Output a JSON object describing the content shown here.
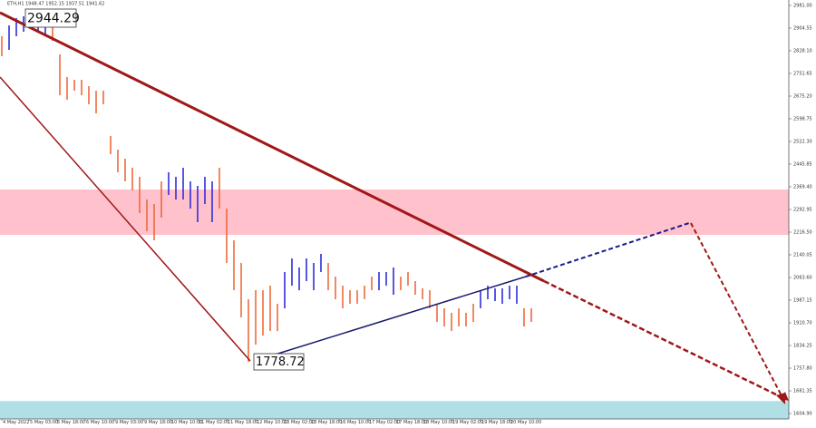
{
  "chart_data": {
    "type": "ohlc",
    "title": "ETH,H1",
    "subtitle": "1948.47 1952.15 1937.51 1941.62",
    "annotations": [
      "2944.29",
      "1778.72"
    ],
    "xlim": [
      0,
      434
    ],
    "ylim": [
      1586.6,
      2999.3
    ],
    "xticks": [
      {
        "value": 0,
        "label": "4 May 2022"
      },
      {
        "value": 15,
        "label": "5 May 03:00"
      },
      {
        "value": 30,
        "label": "5 May 18:00"
      },
      {
        "value": 46,
        "label": "6 May 10:00"
      },
      {
        "value": 62,
        "label": "9 May 03:00"
      },
      {
        "value": 78,
        "label": "9 May 18:00"
      },
      {
        "value": 93,
        "label": "10 May 10:00"
      },
      {
        "value": 108,
        "label": "11 May 02:00"
      },
      {
        "value": 124,
        "label": "11 May 18:00"
      },
      {
        "value": 140,
        "label": "12 May 10:00"
      },
      {
        "value": 155,
        "label": "13 May 02:00"
      },
      {
        "value": 170,
        "label": "13 May 18:00"
      },
      {
        "value": 186,
        "label": "16 May 10:00"
      },
      {
        "value": 202,
        "label": "17 May 02:00"
      },
      {
        "value": 217,
        "label": "17 May 18:00"
      },
      {
        "value": 232,
        "label": "18 May 10:00"
      },
      {
        "value": 248,
        "label": "19 May 02:00"
      },
      {
        "value": 264,
        "label": "19 May 18:00"
      },
      {
        "value": 280,
        "label": "20 May 10:00"
      }
    ],
    "yticks": [
      {
        "value": 2981,
        "label": "2981.00"
      },
      {
        "value": 2904.55,
        "label": "2904.55"
      },
      {
        "value": 2828.1,
        "label": "2828.10"
      },
      {
        "value": 2751.65,
        "label": "2751.65"
      },
      {
        "value": 2675.2,
        "label": "2675.20"
      },
      {
        "value": 2598.75,
        "label": "2598.75"
      },
      {
        "value": 2522.3,
        "label": "2522.30"
      },
      {
        "value": 2445.85,
        "label": "2445.85"
      },
      {
        "value": 2369.4,
        "label": "2369.40"
      },
      {
        "value": 2292.95,
        "label": "2292.95"
      },
      {
        "value": 2216.5,
        "label": "2216.50"
      },
      {
        "value": 2140.05,
        "label": "2140.05"
      },
      {
        "value": 2063.6,
        "label": "2063.60"
      },
      {
        "value": 1987.15,
        "label": "1987.15"
      },
      {
        "value": 1910.7,
        "label": "1910.70"
      },
      {
        "value": 1834.25,
        "label": "1834.25"
      },
      {
        "value": 1757.8,
        "label": "1757.80"
      },
      {
        "value": 1681.35,
        "label": "1681.35"
      },
      {
        "value": 1604.9,
        "label": "1604.90"
      }
    ],
    "zones": [
      {
        "from": 2207.3,
        "to": 2360.2,
        "color": "#ffc1cc"
      },
      {
        "from": 1586.6,
        "to": 1647,
        "color": "#b0e0e6"
      }
    ],
    "series": [
      {
        "color": "#ee6a3a",
        "x": [
          0,
          28,
          32,
          36,
          40,
          44,
          48,
          52,
          56,
          60,
          64,
          68,
          72,
          76,
          80,
          84,
          88,
          120,
          124,
          128,
          132,
          136,
          140,
          144,
          148,
          152,
          180,
          184,
          188,
          192,
          196,
          200,
          204,
          220,
          224,
          228,
          232,
          236,
          240,
          244,
          248,
          252,
          256,
          260,
          288,
          292
        ],
        "high": [
          2877.0,
          2907.6,
          2815.8,
          2739.4,
          2730.2,
          2730.2,
          2708.8,
          2693.5,
          2693.5,
          2540.6,
          2494.7,
          2464.2,
          2433.6,
          2403.0,
          2326.5,
          2311.2,
          2387.7,
          2433.6,
          2295.9,
          2188.9,
          2112.5,
          1990.2,
          2020.7,
          2020.7,
          2036.0,
          1974.9,
          2112.5,
          2066.6,
          2036.0,
          2020.7,
          2020.7,
          2036.0,
          2066.6,
          2066.6,
          2081.9,
          2051.3,
          2026.9,
          2020.7,
          1974.9,
          1959.6,
          1944.3,
          1959.6,
          1944.3,
          1974.9,
          1959.6,
          1959.6
        ],
        "low": [
          2809.7,
          2861.7,
          2678.2,
          2662.9,
          2693.5,
          2678.2,
          2647.6,
          2617.0,
          2647.6,
          2479.4,
          2418.3,
          2387.7,
          2357.1,
          2280.7,
          2219.5,
          2188.9,
          2265.4,
          2295.9,
          2112.5,
          2020.7,
          1929.0,
          1778.72,
          1837.3,
          1867.8,
          1883.1,
          1883.1,
          2020.7,
          1990.2,
          1959.6,
          1974.9,
          1974.9,
          1990.2,
          2020.7,
          2020.7,
          2036.0,
          2005.5,
          1990.2,
          1959.6,
          1913.7,
          1898.4,
          1883.1,
          1898.4,
          1898.4,
          1913.7,
          1898.4,
          1913.7
        ]
      },
      {
        "color": "#2e2ed8",
        "x": [
          4,
          8,
          12,
          16,
          20,
          24,
          92,
          96,
          100,
          104,
          108,
          112,
          116,
          156,
          160,
          164,
          168,
          172,
          176,
          208,
          212,
          216,
          264,
          268,
          272,
          276,
          280,
          284
        ],
        "high": [
          2913.7,
          2938.1,
          2944.29,
          2938.1,
          2922.9,
          2932.0,
          2418.3,
          2403.0,
          2433.6,
          2387.7,
          2372.4,
          2403.0,
          2387.7,
          2081.9,
          2127.8,
          2097.2,
          2127.8,
          2112.5,
          2143.1,
          2081.9,
          2081.9,
          2097.2,
          2020.7,
          2036.0,
          2026.9,
          2026.9,
          2036.0,
          2036.0
        ],
        "low": [
          2831.1,
          2877.0,
          2892.3,
          2901.4,
          2892.3,
          2883.1,
          2341.8,
          2326.5,
          2326.5,
          2295.9,
          2250.1,
          2311.2,
          2250.1,
          1959.6,
          2036.0,
          2020.7,
          2051.3,
          2020.7,
          2081.9,
          2020.7,
          2036.0,
          2005.5,
          1959.6,
          1990.2,
          1984.0,
          1974.9,
          1990.2,
          1974.9
        ]
      }
    ]
  }
}
